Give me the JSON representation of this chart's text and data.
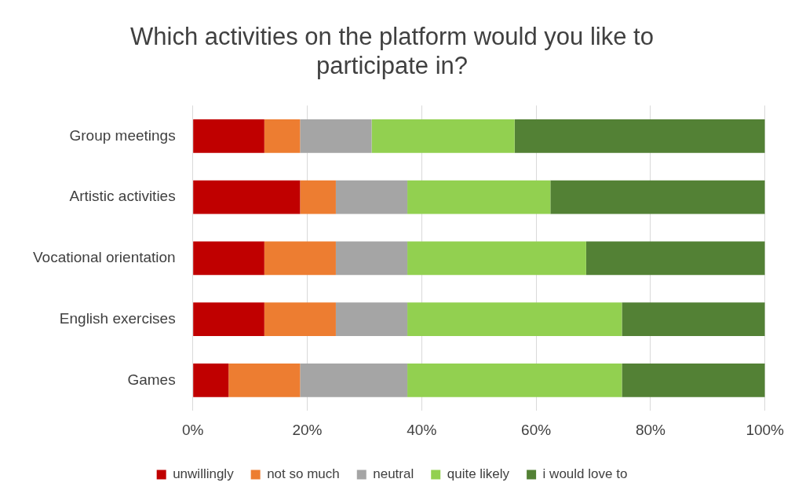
{
  "chart_data": {
    "type": "bar",
    "orientation": "horizontal",
    "stacked": true,
    "title": "Which activities on the platform would you like to participate in?",
    "categories": [
      "Group meetings",
      "Artistic activities",
      "Vocational orientation",
      "English exercises",
      "Games"
    ],
    "series": [
      {
        "name": "unwillingly",
        "color": "#c00000",
        "values": [
          12.5,
          18.75,
          12.5,
          12.5,
          6.25
        ]
      },
      {
        "name": "not so much",
        "color": "#ed7d31",
        "values": [
          6.25,
          6.25,
          12.5,
          12.5,
          12.5
        ]
      },
      {
        "name": "neutral",
        "color": "#a5a5a5",
        "values": [
          12.5,
          12.5,
          12.5,
          12.5,
          18.75
        ]
      },
      {
        "name": "quite likely",
        "color": "#92d050",
        "values": [
          25,
          25,
          31.25,
          37.5,
          37.5
        ]
      },
      {
        "name": "i would love to",
        "color": "#538135",
        "values": [
          43.75,
          37.5,
          31.25,
          25,
          25
        ]
      }
    ],
    "xlim": [
      0,
      100
    ],
    "xticks": [
      {
        "value": 0,
        "label": "0%"
      },
      {
        "value": 20,
        "label": "20%"
      },
      {
        "value": 40,
        "label": "40%"
      },
      {
        "value": 60,
        "label": "60%"
      },
      {
        "value": 80,
        "label": "80%"
      },
      {
        "value": 100,
        "label": "100%"
      }
    ],
    "grid": "x",
    "legend": "bottom"
  }
}
